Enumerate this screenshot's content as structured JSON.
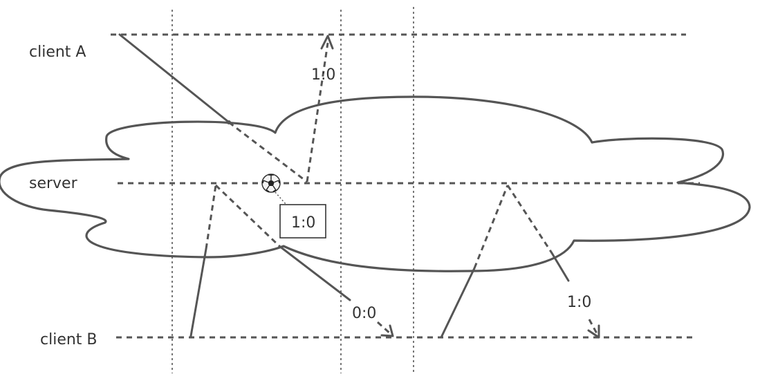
{
  "labels": {
    "client_a": "client A",
    "server": "server",
    "client_b": "client B"
  },
  "scores": {
    "to_client_a": "1:0",
    "server_state": "1:0",
    "to_client_b_first": "0:0",
    "to_client_b_second": "1:0"
  },
  "icons": {
    "ball": "soccer-ball-icon"
  },
  "colors": {
    "stroke": "#555555",
    "text": "#333333"
  }
}
